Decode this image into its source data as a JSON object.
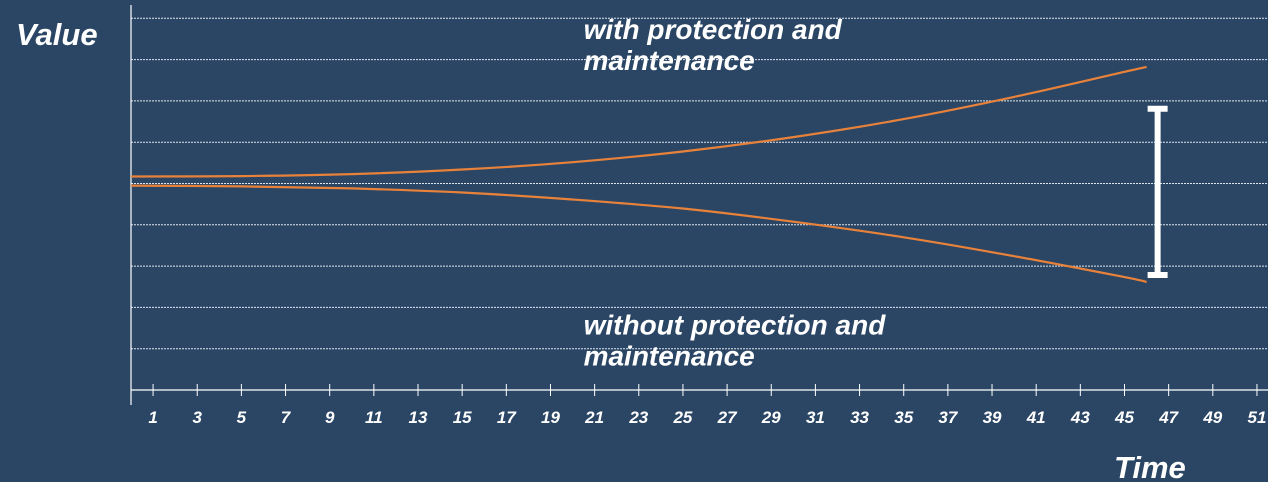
{
  "chart_data": {
    "type": "line",
    "xlabel": "Time",
    "ylabel": "Value",
    "x_ticks": [
      1,
      3,
      5,
      7,
      9,
      11,
      13,
      15,
      17,
      19,
      21,
      23,
      25,
      27,
      29,
      31,
      33,
      35,
      37,
      39,
      41,
      43,
      45,
      47,
      49,
      51
    ],
    "xlim": [
      0,
      51.5
    ],
    "ylim": [
      0,
      9.5
    ],
    "grid": "horizontal dashed",
    "series": [
      {
        "x": [
          0,
          5,
          10,
          15,
          20,
          25,
          30,
          35,
          40,
          45,
          46
        ],
        "y": [
          5.2,
          5.21,
          5.26,
          5.37,
          5.55,
          5.81,
          6.16,
          6.6,
          7.14,
          7.75,
          7.87
        ],
        "color": "#e8823a"
      },
      {
        "x": [
          0,
          5,
          10,
          15,
          20,
          25,
          30,
          35,
          40,
          45,
          46
        ],
        "y": [
          4.98,
          4.96,
          4.91,
          4.81,
          4.64,
          4.42,
          4.1,
          3.72,
          3.26,
          2.75,
          2.63
        ],
        "color": "#e8823a"
      }
    ],
    "annotations": [
      {
        "text": "with protection and maintenance",
        "x": 20.5,
        "y": 8.55
      },
      {
        "text": "without protection and maintenance",
        "x": 20.5,
        "y": 1.35
      }
    ],
    "range_marker": {
      "x": 46.5,
      "y_low": 2.8,
      "y_high": 6.85,
      "color": "#ffffff"
    }
  },
  "colors": {
    "background": "#2b4665",
    "grid": "#dfe6ee",
    "axis": "#ffffff",
    "text": "#ffffff",
    "series": "#e8823a"
  }
}
